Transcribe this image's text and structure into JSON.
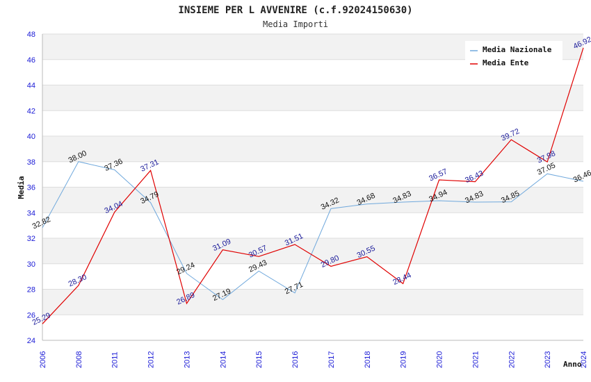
{
  "chart_data": {
    "type": "line",
    "title": "INSIEME PER L AVVENIRE (c.f.92024150630)",
    "subtitle": "Media Importi",
    "xlabel": "Anno",
    "ylabel": "Media",
    "ylim": [
      24,
      48
    ],
    "yticks": [
      24,
      26,
      28,
      30,
      32,
      34,
      36,
      38,
      40,
      42,
      44,
      46,
      48
    ],
    "categories": [
      "2006",
      "2008",
      "2011",
      "2012",
      "2013",
      "2014",
      "2015",
      "2016",
      "2017",
      "2018",
      "2019",
      "2020",
      "2021",
      "2022",
      "2023",
      "2024"
    ],
    "series": [
      {
        "name": "Media Nazionale",
        "color": "#6fa8dc",
        "label_color": "#111111",
        "values": [
          32.82,
          38.0,
          37.36,
          34.79,
          29.24,
          27.19,
          29.43,
          27.71,
          34.32,
          34.68,
          34.83,
          34.94,
          34.83,
          34.85,
          37.05,
          36.46
        ],
        "labels": [
          "32.82",
          "38.00",
          "37.36",
          "34.79",
          "29.24",
          "27.19",
          "29.43",
          "27.71",
          "34.32",
          "34.68",
          "34.83",
          "34.94",
          "34.83",
          "34.85",
          "37.05",
          "36.46"
        ]
      },
      {
        "name": "Media Ente",
        "color": "#e00000",
        "label_color": "#1a1a9a",
        "values": [
          25.29,
          28.3,
          34.04,
          37.31,
          26.89,
          31.09,
          30.57,
          31.51,
          29.8,
          30.55,
          28.44,
          36.57,
          36.43,
          39.72,
          37.98,
          46.92
        ],
        "labels": [
          "25.29",
          "28.30",
          "34.04",
          "37.31",
          "26.89",
          "31.09",
          "30.57",
          "31.51",
          "29.80",
          "30.55",
          "28.44",
          "36.57",
          "36.43",
          "39.72",
          "37.98",
          "46.92"
        ]
      }
    ],
    "grid": true,
    "band_colors": [
      "#ffffff",
      "#f2f2f2"
    ],
    "legend_position": "top-right",
    "tick_color": "#1a1ad6"
  }
}
